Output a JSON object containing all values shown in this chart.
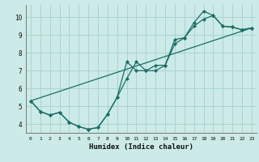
{
  "xlabel": "Humidex (Indice chaleur)",
  "bg_color": "#cceae7",
  "grid_color": "#aad4cf",
  "line_color": "#1a6e65",
  "xlim": [
    -0.5,
    23.5
  ],
  "ylim": [
    3.5,
    10.7
  ],
  "xticks": [
    0,
    1,
    2,
    3,
    4,
    5,
    6,
    7,
    8,
    9,
    10,
    11,
    12,
    13,
    14,
    15,
    16,
    17,
    18,
    19,
    20,
    21,
    22,
    23
  ],
  "yticks": [
    4,
    5,
    6,
    7,
    8,
    9,
    10
  ],
  "line1_x": [
    0,
    1,
    2,
    3,
    4,
    5,
    6,
    7,
    8,
    9,
    10,
    11,
    12,
    13,
    14,
    15,
    16,
    17,
    18,
    19,
    20,
    21,
    22,
    23
  ],
  "line1_y": [
    5.3,
    4.7,
    4.5,
    4.65,
    4.1,
    3.85,
    3.7,
    3.8,
    4.55,
    5.5,
    7.5,
    7.0,
    7.0,
    7.0,
    7.3,
    8.75,
    8.85,
    9.7,
    10.35,
    10.1,
    9.5,
    9.45,
    9.3,
    9.4
  ],
  "line2_x": [
    0,
    1,
    2,
    3,
    4,
    5,
    6,
    7,
    8,
    9,
    10,
    11,
    12,
    13,
    14,
    15,
    16,
    17,
    18,
    19,
    20,
    21,
    22,
    23
  ],
  "line2_y": [
    5.3,
    4.7,
    4.5,
    4.65,
    4.1,
    3.85,
    3.7,
    3.8,
    4.55,
    5.5,
    6.55,
    7.5,
    7.0,
    7.3,
    7.3,
    8.5,
    8.85,
    9.5,
    9.9,
    10.1,
    9.5,
    9.45,
    9.3,
    9.4
  ],
  "line3_x": [
    0,
    23
  ],
  "line3_y": [
    5.3,
    9.4
  ]
}
